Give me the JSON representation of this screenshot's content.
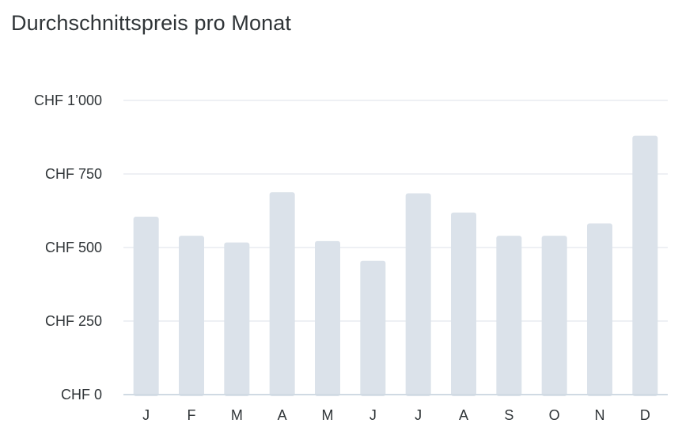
{
  "chart_data": {
    "type": "bar",
    "title": "Durchschnittspreis pro Monat",
    "xlabel": "",
    "ylabel": "",
    "categories": [
      "J",
      "F",
      "M",
      "A",
      "M",
      "J",
      "J",
      "A",
      "S",
      "O",
      "N",
      "D"
    ],
    "values": [
      605,
      540,
      517,
      688,
      522,
      455,
      684,
      619,
      540,
      540,
      582,
      880
    ],
    "ylim": [
      0,
      1000
    ],
    "yticks": [
      0,
      250,
      500,
      750,
      1000
    ],
    "ytick_labels": [
      "CHF 0",
      "CHF 250",
      "CHF 500",
      "CHF 750",
      "CHF 1’000"
    ],
    "grid": true,
    "legend": "none",
    "colors": {
      "bar": "#dbe2ea",
      "grid": "#e8ecf0",
      "axis": "#d0dae3",
      "text": "#2f3437"
    }
  }
}
